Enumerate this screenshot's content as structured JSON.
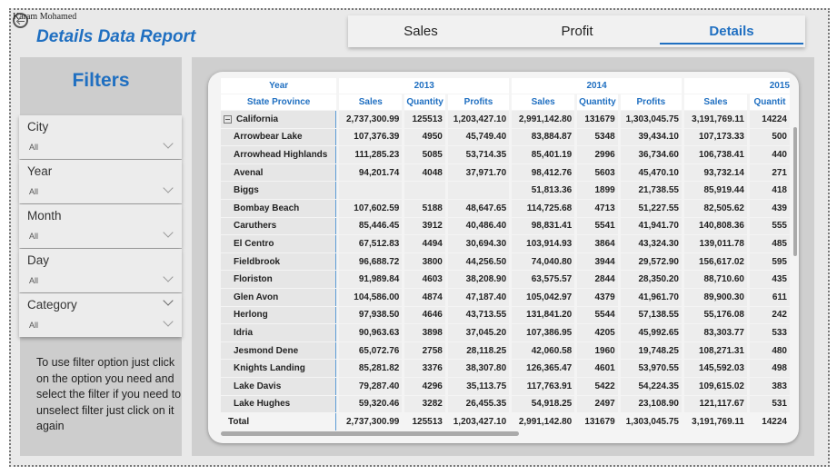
{
  "author": "Karam Mohamed",
  "title": "Details Data Report",
  "accent": "#1f6fc1",
  "tabs": [
    {
      "label": "Sales"
    },
    {
      "label": "Profit"
    },
    {
      "label": "Details",
      "active": true
    }
  ],
  "filters": {
    "title": "Filters",
    "slicers": [
      {
        "label": "City",
        "value": "All"
      },
      {
        "label": "Year",
        "value": "All"
      },
      {
        "label": "Month",
        "value": "All"
      },
      {
        "label": "Day",
        "value": "All"
      },
      {
        "label": "Category",
        "value": "All"
      }
    ],
    "help_text": "To use filter option just click on the option you need and select the filter if you need to unselect filter just click on it again"
  },
  "table": {
    "row_header_label": "Year",
    "row_field_label": "State Province",
    "years": [
      "2013",
      "2014",
      "2015"
    ],
    "measures": [
      "Sales",
      "Quantity",
      "Profits",
      "Sales",
      "Quantity",
      "Profits",
      "Sales",
      "Quantit"
    ],
    "group": {
      "name": "California",
      "expander": "⊟",
      "values": [
        "2,737,300.99",
        "125513",
        "1,203,427.10",
        "2,991,142.80",
        "131679",
        "1,303,045.75",
        "3,191,769.11",
        "14224"
      ]
    },
    "rows": [
      {
        "name": "Arrowbear Lake",
        "values": [
          "107,376.39",
          "4950",
          "45,749.40",
          "83,884.87",
          "5348",
          "39,434.10",
          "107,173.33",
          "500"
        ]
      },
      {
        "name": "Arrowhead Highlands",
        "values": [
          "111,285.23",
          "5085",
          "53,714.35",
          "85,401.19",
          "2996",
          "36,734.60",
          "106,738.41",
          "440"
        ]
      },
      {
        "name": "Avenal",
        "values": [
          "94,201.74",
          "4048",
          "37,971.70",
          "98,412.76",
          "5603",
          "45,470.10",
          "93,732.14",
          "271"
        ]
      },
      {
        "name": "Biggs",
        "values": [
          "",
          "",
          "",
          "51,813.36",
          "1899",
          "21,738.55",
          "85,919.44",
          "418"
        ]
      },
      {
        "name": "Bombay Beach",
        "values": [
          "107,602.59",
          "5188",
          "48,647.65",
          "114,725.68",
          "4713",
          "51,227.55",
          "82,505.62",
          "439"
        ]
      },
      {
        "name": "Caruthers",
        "values": [
          "85,446.45",
          "3912",
          "40,486.40",
          "98,831.41",
          "5541",
          "41,941.70",
          "140,808.36",
          "555"
        ]
      },
      {
        "name": "El Centro",
        "values": [
          "67,512.83",
          "4494",
          "30,694.30",
          "103,914.93",
          "3864",
          "43,324.30",
          "139,011.78",
          "485"
        ]
      },
      {
        "name": "Fieldbrook",
        "values": [
          "96,688.72",
          "3800",
          "44,256.50",
          "74,040.80",
          "3944",
          "29,572.90",
          "156,617.02",
          "595"
        ]
      },
      {
        "name": "Floriston",
        "values": [
          "91,989.84",
          "4603",
          "38,208.90",
          "63,575.57",
          "2844",
          "28,350.20",
          "88,710.60",
          "435"
        ]
      },
      {
        "name": "Glen Avon",
        "values": [
          "104,586.00",
          "4874",
          "47,187.40",
          "105,042.97",
          "4379",
          "41,961.70",
          "89,900.30",
          "611"
        ]
      },
      {
        "name": "Herlong",
        "values": [
          "97,938.50",
          "4646",
          "43,713.55",
          "131,841.20",
          "5544",
          "57,138.55",
          "55,176.08",
          "242"
        ]
      },
      {
        "name": "Idria",
        "values": [
          "90,963.63",
          "3898",
          "37,045.20",
          "107,386.95",
          "4205",
          "45,992.65",
          "83,303.77",
          "533"
        ]
      },
      {
        "name": "Jesmond Dene",
        "values": [
          "65,072.76",
          "2758",
          "28,118.25",
          "42,060.58",
          "1960",
          "19,748.25",
          "108,271.31",
          "480"
        ]
      },
      {
        "name": "Knights Landing",
        "values": [
          "85,281.82",
          "3376",
          "38,307.80",
          "126,365.47",
          "4601",
          "53,970.55",
          "145,592.03",
          "498"
        ]
      },
      {
        "name": "Lake Davis",
        "values": [
          "79,287.40",
          "4296",
          "35,113.75",
          "117,763.91",
          "5422",
          "54,224.35",
          "109,615.02",
          "383"
        ]
      },
      {
        "name": "Lake Hughes",
        "values": [
          "59,320.46",
          "3282",
          "26,455.35",
          "54,918.25",
          "2497",
          "23,108.90",
          "121,117.67",
          "531"
        ]
      }
    ],
    "total": {
      "name": "Total",
      "values": [
        "2,737,300.99",
        "125513",
        "1,203,427.10",
        "2,991,142.80",
        "131679",
        "1,303,045.75",
        "3,191,769.11",
        "14224"
      ]
    }
  }
}
